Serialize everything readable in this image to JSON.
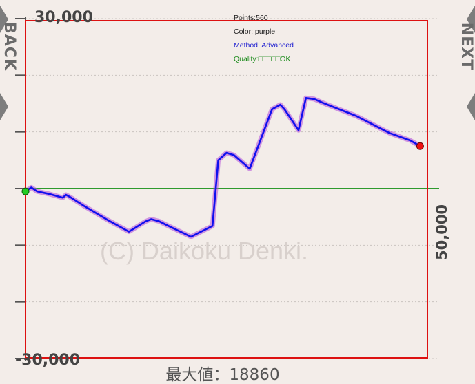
{
  "nav": {
    "back_label": "BACK",
    "next_label": "NEXT"
  },
  "info": {
    "points": "Points:560",
    "color": "Color: purple",
    "method": "Method: Advanced",
    "quality": "Quality:□□□□□OK"
  },
  "colors": {
    "background": "#f3ede9",
    "line": "#1010ee",
    "halo": "#b04ad8",
    "frame": "#dd1111",
    "zero_line": "#2e9a2e",
    "start_marker": "#22cc22",
    "end_marker": "#ee1111",
    "method_text": "#1f1fd0",
    "quality_text": "#1a8a1a"
  },
  "icons": [
    "back-chevron-icon",
    "next-chevron-icon"
  ],
  "chart_data": {
    "type": "line",
    "title": "",
    "xlabel": "",
    "ylabel": "",
    "y_top_label": "30,000",
    "y_bottom_label": "-30,000",
    "x_right_label": "50,000",
    "footer": "最大値：18860",
    "watermark": "(C) Daikoku Denki.",
    "ylim": [
      -30000,
      30000
    ],
    "xlim": [
      0,
      50000
    ],
    "grid": true,
    "series": [
      {
        "x": [
          0,
          700,
          1400,
          3000,
          4500,
          4900,
          5400,
          7000,
          10000,
          12500,
          14500,
          15200,
          16200,
          17000,
          20000,
          22600,
          23300,
          24300,
          25200,
          27100,
          29800,
          30800,
          31300,
          33000,
          33900,
          34900,
          36000,
          40000,
          44000,
          46500,
          47700
        ],
        "y": [
          -500,
          200,
          -500,
          -1000,
          -1600,
          -1100,
          -1500,
          -3000,
          -5600,
          -7600,
          -5800,
          -5400,
          -5800,
          -6400,
          -8500,
          -6600,
          5000,
          6300,
          5900,
          3500,
          14000,
          14800,
          14000,
          10300,
          16000,
          15800,
          15100,
          12800,
          9800,
          8500,
          7500
        ]
      }
    ]
  }
}
